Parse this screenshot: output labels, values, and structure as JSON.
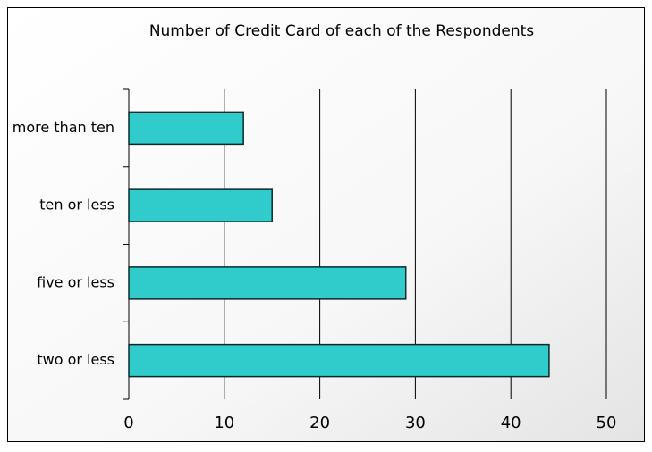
{
  "chart_data": {
    "type": "barh",
    "title": "Number of Credit Card of each of the Respondents",
    "categories": [
      "more than ten",
      "ten or less",
      "five or less",
      "two or less"
    ],
    "values": [
      12,
      15,
      29,
      44
    ],
    "color": "#30cccc",
    "xlim": [
      0,
      50
    ],
    "xticks": [
      0,
      10,
      20,
      30,
      40,
      50
    ],
    "grid": true
  }
}
